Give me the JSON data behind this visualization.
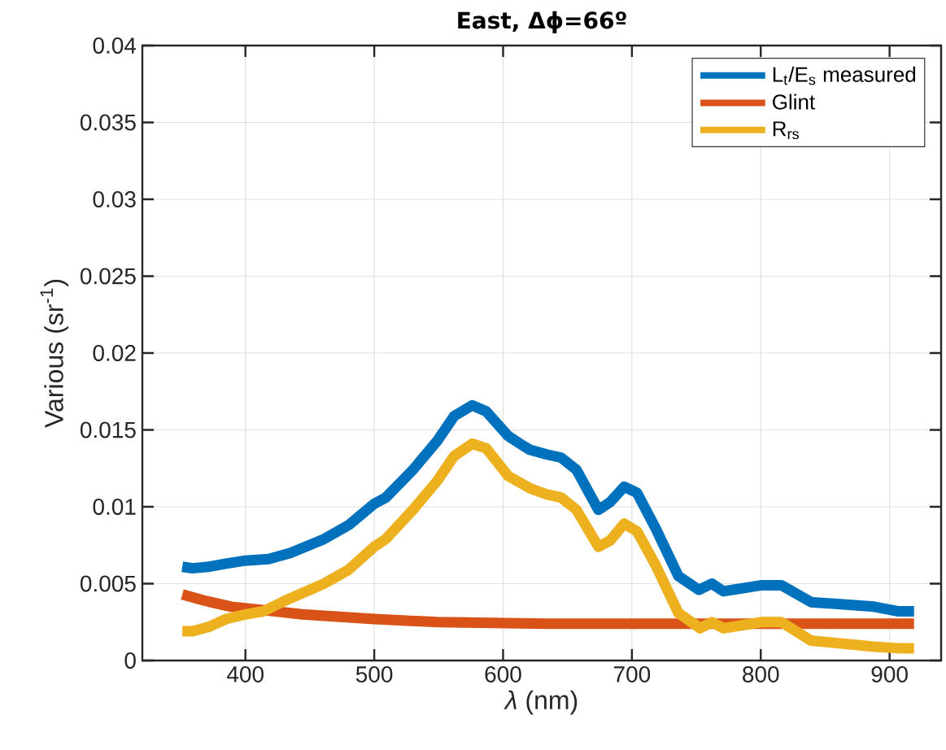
{
  "chart_data": {
    "type": "line",
    "title": "East, Δϕ=66º",
    "xlabel": "*λ* (nm)",
    "ylabel": "Various (sr$^{-1}$)",
    "xlim": [
      320,
      940
    ],
    "xticks": [
      400,
      500,
      600,
      700,
      800,
      900
    ],
    "ylim": [
      0,
      0.04
    ],
    "yticks": [
      0,
      0.005,
      0.01,
      0.015,
      0.02,
      0.025,
      0.03,
      0.035,
      0.04
    ],
    "grid": true,
    "legend": "top right",
    "line_style": "solid",
    "series": [
      {
        "name": "L$_{t}$/E$_{s}$ measured",
        "color": "#0072bd",
        "x": [
          351,
          359,
          372,
          385,
          400,
          418,
          435,
          461,
          480,
          500,
          509,
          530,
          549,
          562,
          576,
          587,
          604,
          615,
          621,
          634,
          645,
          657,
          674,
          683,
          694,
          704,
          719,
          736,
          752,
          762,
          771,
          801,
          816,
          839,
          888,
          907,
          919
        ],
        "values": [
          0.0061,
          0.006,
          0.0061,
          0.0063,
          0.0065,
          0.0066,
          0.007,
          0.0079,
          0.0088,
          0.0102,
          0.0106,
          0.0124,
          0.0143,
          0.0159,
          0.0166,
          0.0162,
          0.0146,
          0.014,
          0.0137,
          0.0134,
          0.0132,
          0.0124,
          0.0098,
          0.0103,
          0.0113,
          0.0109,
          0.0085,
          0.0055,
          0.0046,
          0.005,
          0.0045,
          0.0049,
          0.0049,
          0.0038,
          0.0035,
          0.0032,
          0.0032
        ]
      },
      {
        "name": "Glint",
        "color": "#d95319",
        "x": [
          351,
          368,
          389,
          412,
          444,
          500,
          549,
          634,
          700,
          800,
          919
        ],
        "values": [
          0.0043,
          0.0039,
          0.0035,
          0.0033,
          0.003,
          0.0027,
          0.0025,
          0.0024,
          0.0024,
          0.0024,
          0.0024
        ]
      },
      {
        "name": "R$_{rs}$",
        "color": "#edb120",
        "x": [
          351,
          359,
          372,
          385,
          400,
          414,
          431,
          461,
          480,
          500,
          509,
          530,
          549,
          562,
          576,
          587,
          604,
          621,
          634,
          645,
          657,
          674,
          683,
          694,
          704,
          719,
          736,
          753,
          762,
          771,
          801,
          816,
          839,
          888,
          907,
          919
        ],
        "values": [
          0.0019,
          0.0019,
          0.0022,
          0.0027,
          0.003,
          0.0032,
          0.0039,
          0.005,
          0.0059,
          0.0074,
          0.0079,
          0.0098,
          0.0117,
          0.0133,
          0.0141,
          0.0138,
          0.012,
          0.0112,
          0.0108,
          0.0106,
          0.0098,
          0.0074,
          0.0078,
          0.0089,
          0.0084,
          0.0061,
          0.0031,
          0.0021,
          0.0025,
          0.0021,
          0.0025,
          0.0025,
          0.0013,
          0.0009,
          0.0008,
          0.0008
        ]
      }
    ]
  }
}
